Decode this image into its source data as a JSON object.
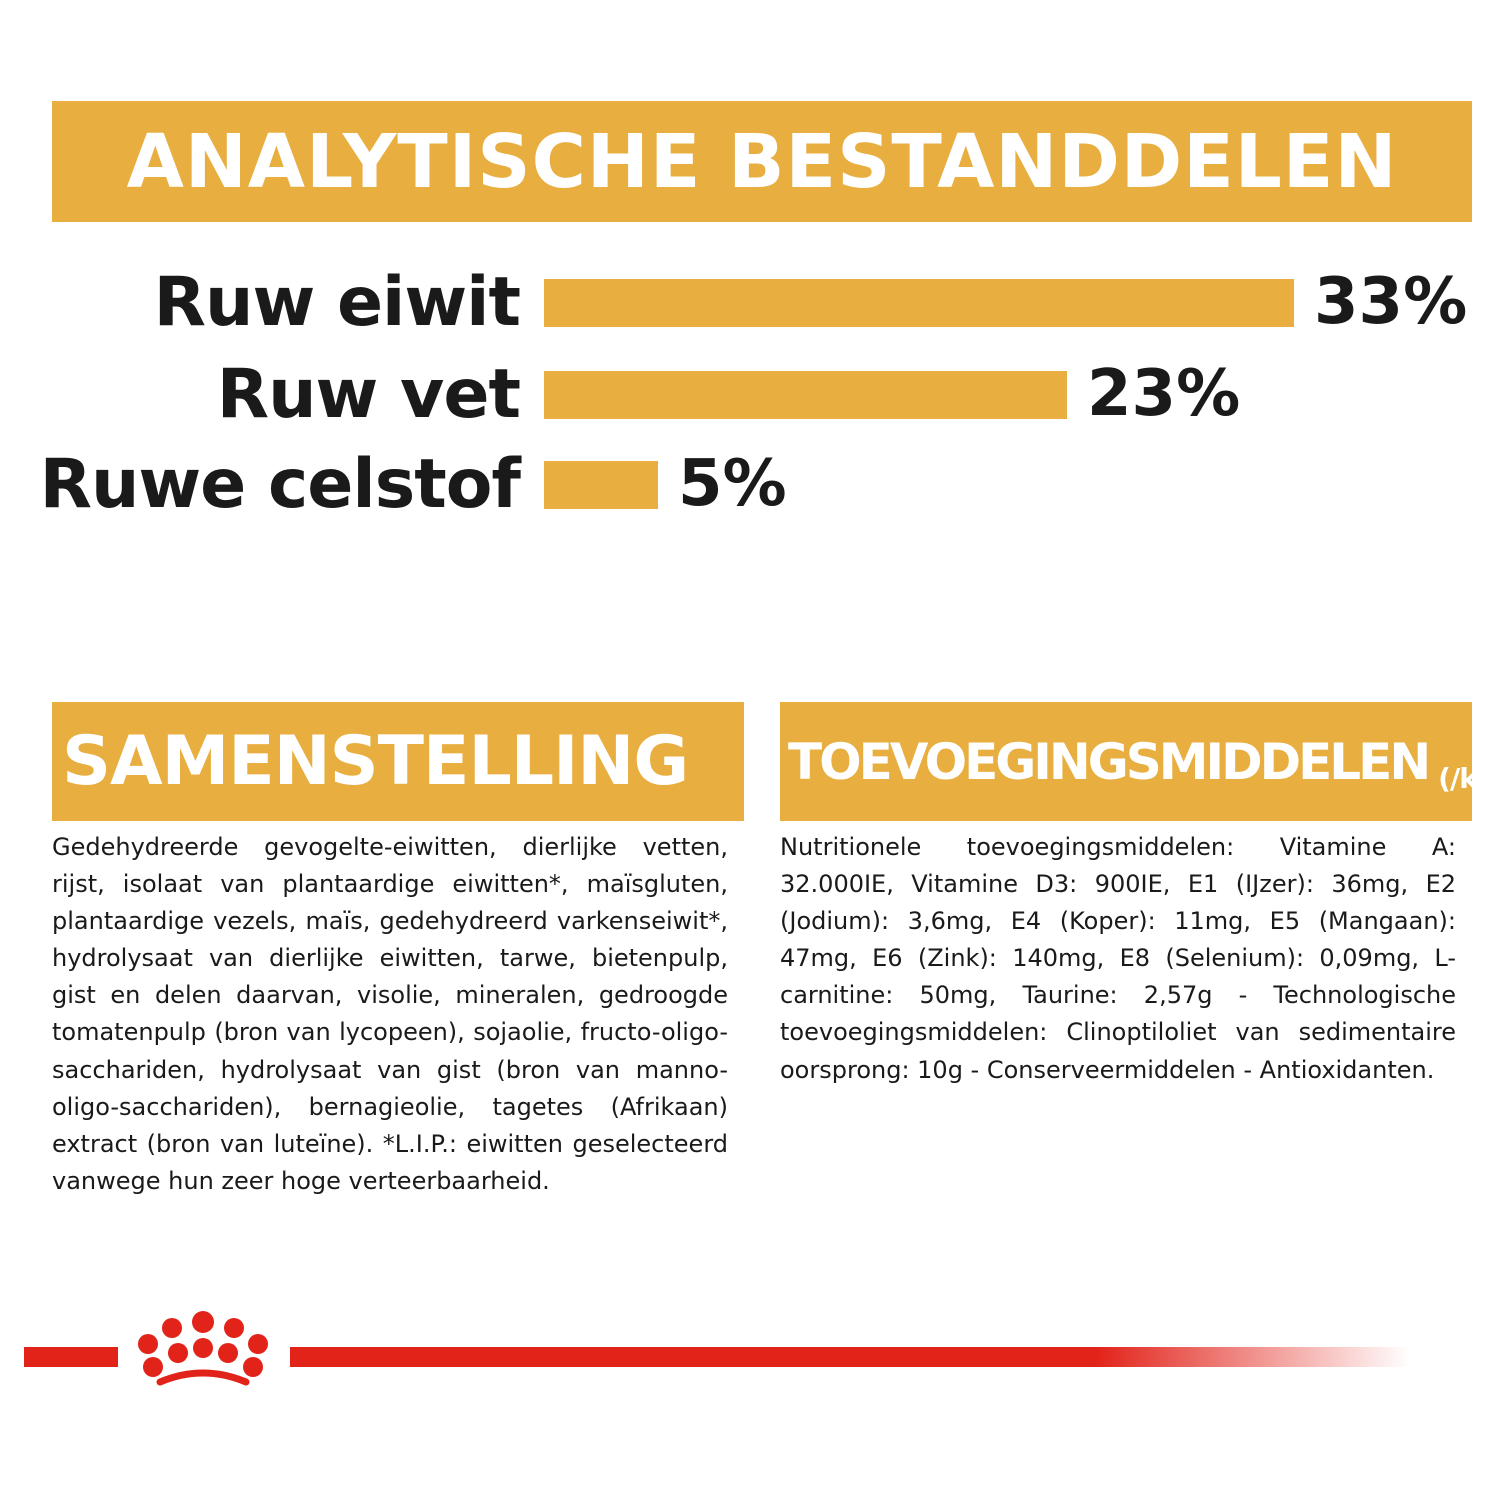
{
  "header": {
    "title": "ANALYTISCHE BESTANDDELEN"
  },
  "chart_data": {
    "type": "bar",
    "categories": [
      "Ruw eiwit",
      "Ruw vet",
      "Ruwe celstof"
    ],
    "values": [
      33,
      23,
      5
    ],
    "value_labels": [
      "33%",
      "23%",
      "5%"
    ],
    "xlim": [
      0,
      33
    ],
    "colors": {
      "bar": "#e8ae3f"
    }
  },
  "composition": {
    "title": "SAMENSTELLING",
    "text": "Gedehydreerde gevogelte-eiwitten, dierlijke vetten, rijst, isolaat van plantaardige eiwitten*, maïsgluten, plantaardige vezels, maïs, gedehydreerd varkenseiwit*, hydrolysaat van dierlijke eiwitten, tarwe, bietenpulp, gist en delen daarvan, visolie, mineralen, gedroogde tomatenpulp (bron van lycopeen), sojaolie, fructo-oligo-sacchariden, hydrolysaat van gist (bron van manno-oligo-sacchariden), bernagieolie, tagetes (Afrikaan) extract (bron van luteïne). *L.I.P.: eiwitten geselecteerd vanwege hun zeer hoge verteerbaarheid."
  },
  "additives": {
    "title": "TOEVOEGINGSMIDDELEN",
    "unit": "(/kg)",
    "text": "Nutritionele toevoegingsmiddelen: Vitamine A: 32.000IE, Vitamine D3: 900IE, E1 (IJzer): 36mg, E2 (Jodium): 3,6mg, E4 (Koper): 11mg, E5 (Mangaan): 47mg, E6 (Zink): 140mg, E8 (Selenium): 0,09mg, L-carnitine: 50mg, Taurine: 2,57g - Technologische toevoegingsmiddelen: Clinoptiloliet van sedimentaire oorsprong: 10g - Conserveermiddelen - Antioxidanten."
  },
  "footer": {
    "logo_icon": "crown-icon",
    "line_color": "#e2231a"
  },
  "colors": {
    "accent": "#e8ae3f",
    "brand_red": "#e2231a"
  }
}
